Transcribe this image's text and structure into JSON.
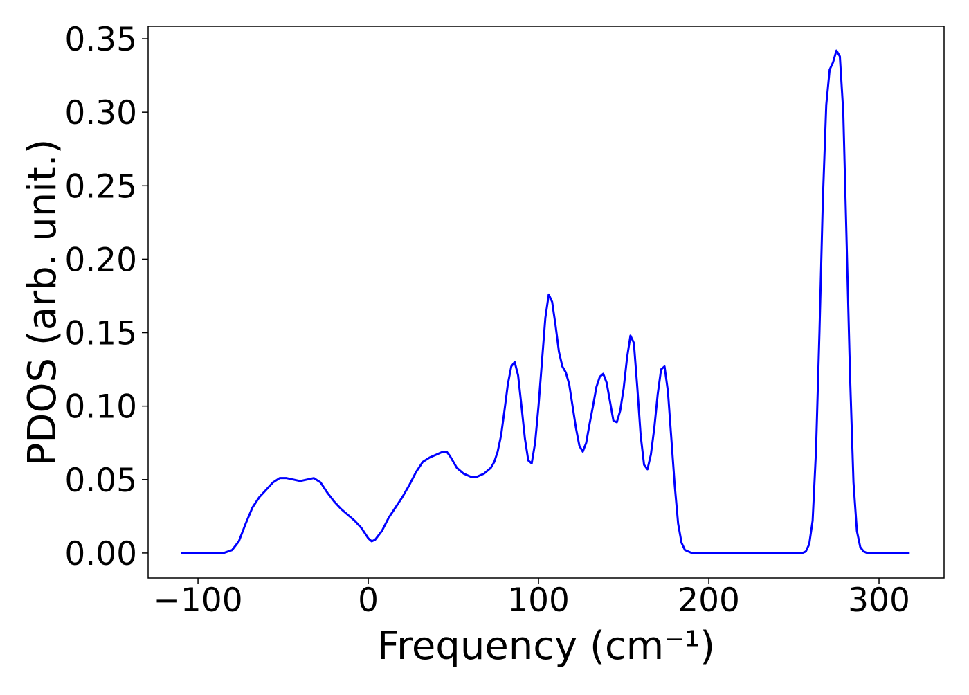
{
  "chart_data": {
    "type": "line",
    "xlabel": "Frequency (cm⁻¹)",
    "ylabel": "PDOS (arb. unit.)",
    "x": [
      -110,
      -85,
      -80,
      -76,
      -72,
      -68,
      -64,
      -60,
      -56,
      -52,
      -48,
      -44,
      -40,
      -36,
      -32,
      -28,
      -24,
      -20,
      -16,
      -12,
      -8,
      -4,
      0,
      2,
      4,
      8,
      12,
      16,
      20,
      24,
      28,
      32,
      36,
      40,
      44,
      46,
      48,
      52,
      56,
      60,
      64,
      68,
      72,
      74,
      76,
      78,
      80,
      82,
      84,
      86,
      88,
      90,
      92,
      94,
      96,
      98,
      100,
      102,
      104,
      106,
      108,
      110,
      112,
      114,
      116,
      118,
      120,
      122,
      124,
      126,
      128,
      130,
      132,
      134,
      136,
      138,
      140,
      142,
      144,
      146,
      148,
      150,
      152,
      154,
      156,
      158,
      160,
      162,
      164,
      166,
      168,
      170,
      172,
      174,
      176,
      178,
      180,
      182,
      184,
      186,
      190,
      255,
      257,
      259,
      261,
      263,
      265,
      267,
      269,
      271,
      273,
      275,
      277,
      279,
      281,
      283,
      285,
      287,
      289,
      291,
      293,
      318
    ],
    "series": [
      {
        "name": "PDOS",
        "color": "#0000ff",
        "values": [
          0,
          0,
          0.002,
          0.008,
          0.02,
          0.031,
          0.038,
          0.043,
          0.048,
          0.051,
          0.051,
          0.05,
          0.049,
          0.05,
          0.051,
          0.048,
          0.041,
          0.035,
          0.03,
          0.026,
          0.022,
          0.017,
          0.01,
          0.008,
          0.009,
          0.015,
          0.024,
          0.031,
          0.038,
          0.046,
          0.055,
          0.062,
          0.065,
          0.067,
          0.069,
          0.069,
          0.066,
          0.058,
          0.054,
          0.052,
          0.052,
          0.054,
          0.058,
          0.062,
          0.069,
          0.08,
          0.097,
          0.115,
          0.127,
          0.13,
          0.121,
          0.1,
          0.078,
          0.063,
          0.061,
          0.075,
          0.1,
          0.13,
          0.16,
          0.176,
          0.171,
          0.155,
          0.137,
          0.127,
          0.123,
          0.115,
          0.1,
          0.085,
          0.073,
          0.069,
          0.075,
          0.088,
          0.1,
          0.113,
          0.12,
          0.122,
          0.116,
          0.103,
          0.09,
          0.089,
          0.097,
          0.112,
          0.133,
          0.148,
          0.143,
          0.113,
          0.08,
          0.06,
          0.057,
          0.067,
          0.085,
          0.108,
          0.125,
          0.127,
          0.11,
          0.078,
          0.046,
          0.02,
          0.007,
          0.002,
          0,
          0,
          0.001,
          0.006,
          0.022,
          0.07,
          0.15,
          0.24,
          0.305,
          0.329,
          0.334,
          0.342,
          0.338,
          0.3,
          0.21,
          0.12,
          0.048,
          0.015,
          0.004,
          0.001,
          0,
          0
        ]
      }
    ],
    "xlim": [
      -129.3,
      338.2
    ],
    "ylim": [
      -0.017,
      0.3585
    ],
    "xticks": [
      {
        "value": -100,
        "label": "−100"
      },
      0,
      100,
      200,
      300
    ],
    "yticks": [
      {
        "value": 0,
        "label": "0.00"
      },
      {
        "value": 0.05,
        "label": "0.05"
      },
      {
        "value": 0.1,
        "label": "0.10"
      },
      {
        "value": 0.15,
        "label": "0.15"
      },
      {
        "value": 0.2,
        "label": "0.20"
      },
      {
        "value": 0.25,
        "label": "0.25"
      },
      {
        "value": 0.3,
        "label": "0.30"
      },
      {
        "value": 0.35,
        "label": "0.35"
      }
    ],
    "grid": false
  }
}
